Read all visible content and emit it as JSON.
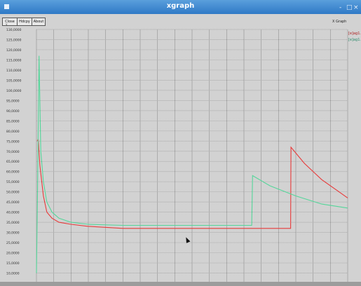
{
  "window": {
    "title": "xgraph",
    "controls": [
      "-",
      "□",
      "×"
    ]
  },
  "toolbar": {
    "close_label": "Close",
    "hardcopy_label": "Hdcpy",
    "about_label": "About"
  },
  "graph_label": "X Graph",
  "y_axis_label": "Y",
  "legend": [
    "[e]ag1.t",
    "[e]ag1.t"
  ],
  "colors": {
    "series_1": "#e83a3a",
    "series_2": "#55d69a",
    "grid": "#9b9b9b",
    "plot_bg": "#d2d2d2"
  },
  "chart_data": {
    "type": "line",
    "y_ticks": [
      "130,0000",
      "125,0000",
      "120,0000",
      "115,0000",
      "110,0000",
      "105,0000",
      "100,0000",
      "95,0000",
      "90,0000",
      "85,0000",
      "80,0000",
      "75,0000",
      "70,0000",
      "65,0000",
      "60,0000",
      "55,0000",
      "50,0000",
      "45,0000",
      "40,0000",
      "35,0000",
      "30,0000",
      "25,0000",
      "20,0000",
      "15,0000",
      "10,0000",
      "5,0000"
    ],
    "ylim": [
      5,
      130
    ],
    "xlim": [
      0,
      18
    ],
    "grid": true,
    "legend_position": "top-right",
    "series": [
      {
        "x": [
          0.05,
          0.1,
          0.2,
          0.4,
          0.6,
          0.9,
          1.3,
          2,
          3,
          5,
          8,
          10,
          12,
          13,
          14.7,
          14.72,
          15.5,
          16.5,
          17.5,
          18
        ],
        "y": [
          75,
          76,
          63,
          48,
          40,
          37,
          35,
          34,
          33,
          32,
          32,
          32,
          32,
          32,
          32,
          72,
          64,
          56,
          50,
          47
        ]
      },
      {
        "x": [
          0,
          0.05,
          0.15,
          0.25,
          0.4,
          0.6,
          0.9,
          1.3,
          2,
          3,
          5,
          8,
          10,
          12,
          12.45,
          12.5,
          13.5,
          15,
          16.5,
          18
        ],
        "y": [
          10,
          40,
          117,
          70,
          55,
          45,
          40,
          37,
          35,
          34,
          33.5,
          33.5,
          33.5,
          33.5,
          33.5,
          58,
          53,
          48,
          44,
          42
        ]
      }
    ]
  }
}
